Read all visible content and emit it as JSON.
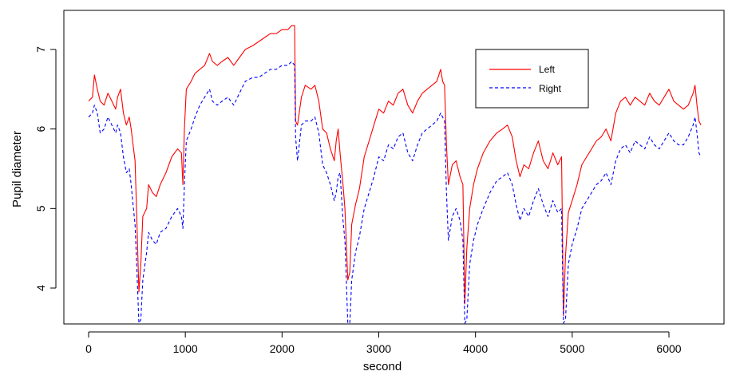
{
  "chart_data": {
    "type": "line",
    "title": "",
    "xlabel": "second",
    "ylabel": "Pupil diameter",
    "xlim": [
      0,
      6350
    ],
    "ylim": [
      3.55,
      7.45
    ],
    "x_ticks": [
      {
        "value": 0,
        "label": "0"
      },
      {
        "value": 1000,
        "label": "1000"
      },
      {
        "value": 2000,
        "label": "2000"
      },
      {
        "value": 3000,
        "label": "3000"
      },
      {
        "value": 4000,
        "label": "4000"
      },
      {
        "value": 5000,
        "label": "5000"
      },
      {
        "value": 6000,
        "label": "6000"
      }
    ],
    "y_ticks": [
      {
        "value": 4,
        "label": "4"
      },
      {
        "value": 5,
        "label": "5"
      },
      {
        "value": 6,
        "label": "6"
      },
      {
        "value": 7,
        "label": "7"
      }
    ],
    "grid": false,
    "legend": {
      "placement": "top-right"
    },
    "series": [
      {
        "name": "Left",
        "color": "#ff0000",
        "dash": "solid",
        "points": [
          [
            0,
            6.35
          ],
          [
            40,
            6.4
          ],
          [
            60,
            6.68
          ],
          [
            90,
            6.5
          ],
          [
            120,
            6.35
          ],
          [
            160,
            6.3
          ],
          [
            200,
            6.45
          ],
          [
            240,
            6.35
          ],
          [
            280,
            6.25
          ],
          [
            300,
            6.4
          ],
          [
            330,
            6.5
          ],
          [
            360,
            6.2
          ],
          [
            390,
            6.05
          ],
          [
            420,
            6.15
          ],
          [
            440,
            6.0
          ],
          [
            460,
            5.8
          ],
          [
            480,
            5.6
          ],
          [
            500,
            4.8
          ],
          [
            520,
            3.95
          ],
          [
            540,
            4.3
          ],
          [
            560,
            4.9
          ],
          [
            600,
            5.0
          ],
          [
            620,
            5.3
          ],
          [
            660,
            5.2
          ],
          [
            700,
            5.15
          ],
          [
            740,
            5.3
          ],
          [
            800,
            5.45
          ],
          [
            860,
            5.65
          ],
          [
            920,
            5.75
          ],
          [
            960,
            5.7
          ],
          [
            975,
            5.3
          ],
          [
            990,
            6.0
          ],
          [
            1010,
            6.5
          ],
          [
            1060,
            6.6
          ],
          [
            1100,
            6.7
          ],
          [
            1150,
            6.75
          ],
          [
            1200,
            6.8
          ],
          [
            1250,
            6.95
          ],
          [
            1280,
            6.85
          ],
          [
            1330,
            6.8
          ],
          [
            1380,
            6.85
          ],
          [
            1440,
            6.9
          ],
          [
            1500,
            6.8
          ],
          [
            1560,
            6.9
          ],
          [
            1620,
            7.0
          ],
          [
            1700,
            7.05
          ],
          [
            1760,
            7.1
          ],
          [
            1820,
            7.15
          ],
          [
            1880,
            7.2
          ],
          [
            1940,
            7.2
          ],
          [
            2000,
            7.25
          ],
          [
            2060,
            7.25
          ],
          [
            2100,
            7.3
          ],
          [
            2130,
            7.3
          ],
          [
            2140,
            6.1
          ],
          [
            2160,
            6.05
          ],
          [
            2200,
            6.4
          ],
          [
            2240,
            6.55
          ],
          [
            2300,
            6.5
          ],
          [
            2340,
            6.55
          ],
          [
            2380,
            6.35
          ],
          [
            2420,
            6.0
          ],
          [
            2460,
            5.95
          ],
          [
            2500,
            5.75
          ],
          [
            2540,
            5.6
          ],
          [
            2560,
            5.85
          ],
          [
            2580,
            6.0
          ],
          [
            2600,
            5.7
          ],
          [
            2630,
            5.3
          ],
          [
            2650,
            5.0
          ],
          [
            2680,
            4.1
          ],
          [
            2700,
            4.2
          ],
          [
            2720,
            4.8
          ],
          [
            2760,
            5.05
          ],
          [
            2800,
            5.25
          ],
          [
            2850,
            5.65
          ],
          [
            2900,
            5.85
          ],
          [
            2950,
            6.05
          ],
          [
            3000,
            6.25
          ],
          [
            3050,
            6.2
          ],
          [
            3100,
            6.35
          ],
          [
            3150,
            6.3
          ],
          [
            3200,
            6.45
          ],
          [
            3250,
            6.5
          ],
          [
            3300,
            6.3
          ],
          [
            3350,
            6.2
          ],
          [
            3400,
            6.35
          ],
          [
            3450,
            6.45
          ],
          [
            3500,
            6.5
          ],
          [
            3550,
            6.55
          ],
          [
            3600,
            6.6
          ],
          [
            3640,
            6.75
          ],
          [
            3660,
            6.6
          ],
          [
            3680,
            6.55
          ],
          [
            3700,
            5.8
          ],
          [
            3720,
            5.3
          ],
          [
            3760,
            5.55
          ],
          [
            3800,
            5.6
          ],
          [
            3840,
            5.4
          ],
          [
            3870,
            5.3
          ],
          [
            3890,
            3.8
          ],
          [
            3910,
            4.5
          ],
          [
            3940,
            5.0
          ],
          [
            3980,
            5.3
          ],
          [
            4020,
            5.5
          ],
          [
            4080,
            5.7
          ],
          [
            4150,
            5.85
          ],
          [
            4220,
            5.95
          ],
          [
            4280,
            6.0
          ],
          [
            4330,
            6.05
          ],
          [
            4380,
            5.9
          ],
          [
            4420,
            5.6
          ],
          [
            4460,
            5.4
          ],
          [
            4500,
            5.55
          ],
          [
            4550,
            5.5
          ],
          [
            4600,
            5.7
          ],
          [
            4650,
            5.85
          ],
          [
            4700,
            5.6
          ],
          [
            4750,
            5.5
          ],
          [
            4800,
            5.7
          ],
          [
            4850,
            5.55
          ],
          [
            4890,
            5.65
          ],
          [
            4910,
            3.65
          ],
          [
            4930,
            4.4
          ],
          [
            4960,
            4.95
          ],
          [
            5000,
            5.1
          ],
          [
            5050,
            5.3
          ],
          [
            5100,
            5.55
          ],
          [
            5150,
            5.65
          ],
          [
            5200,
            5.75
          ],
          [
            5250,
            5.85
          ],
          [
            5300,
            5.9
          ],
          [
            5350,
            6.0
          ],
          [
            5400,
            5.85
          ],
          [
            5450,
            6.2
          ],
          [
            5500,
            6.35
          ],
          [
            5550,
            6.4
          ],
          [
            5600,
            6.3
          ],
          [
            5650,
            6.4
          ],
          [
            5700,
            6.35
          ],
          [
            5750,
            6.3
          ],
          [
            5800,
            6.45
          ],
          [
            5850,
            6.35
          ],
          [
            5900,
            6.3
          ],
          [
            5950,
            6.4
          ],
          [
            6000,
            6.5
          ],
          [
            6050,
            6.35
          ],
          [
            6100,
            6.3
          ],
          [
            6150,
            6.25
          ],
          [
            6200,
            6.3
          ],
          [
            6250,
            6.45
          ],
          [
            6270,
            6.55
          ],
          [
            6290,
            6.3
          ],
          [
            6310,
            6.1
          ],
          [
            6330,
            6.05
          ]
        ]
      },
      {
        "name": "Right",
        "color": "#0000ff",
        "dash": "dashed",
        "points": [
          [
            0,
            6.15
          ],
          [
            40,
            6.2
          ],
          [
            60,
            6.3
          ],
          [
            90,
            6.2
          ],
          [
            120,
            5.95
          ],
          [
            160,
            6.0
          ],
          [
            200,
            6.15
          ],
          [
            240,
            6.05
          ],
          [
            280,
            5.95
          ],
          [
            300,
            6.05
          ],
          [
            330,
            5.95
          ],
          [
            360,
            5.65
          ],
          [
            390,
            5.45
          ],
          [
            420,
            5.5
          ],
          [
            440,
            5.3
          ],
          [
            460,
            5.05
          ],
          [
            480,
            4.8
          ],
          [
            500,
            4.2
          ],
          [
            520,
            3.55
          ],
          [
            540,
            3.6
          ],
          [
            560,
            4.1
          ],
          [
            600,
            4.45
          ],
          [
            620,
            4.7
          ],
          [
            660,
            4.6
          ],
          [
            700,
            4.55
          ],
          [
            740,
            4.7
          ],
          [
            800,
            4.75
          ],
          [
            860,
            4.9
          ],
          [
            920,
            5.0
          ],
          [
            960,
            4.9
          ],
          [
            975,
            4.75
          ],
          [
            990,
            5.3
          ],
          [
            1010,
            5.85
          ],
          [
            1060,
            6.0
          ],
          [
            1100,
            6.15
          ],
          [
            1150,
            6.3
          ],
          [
            1200,
            6.4
          ],
          [
            1250,
            6.5
          ],
          [
            1280,
            6.35
          ],
          [
            1330,
            6.3
          ],
          [
            1380,
            6.35
          ],
          [
            1440,
            6.4
          ],
          [
            1500,
            6.3
          ],
          [
            1560,
            6.45
          ],
          [
            1620,
            6.6
          ],
          [
            1700,
            6.65
          ],
          [
            1760,
            6.65
          ],
          [
            1820,
            6.7
          ],
          [
            1880,
            6.75
          ],
          [
            1940,
            6.75
          ],
          [
            2000,
            6.8
          ],
          [
            2060,
            6.8
          ],
          [
            2100,
            6.85
          ],
          [
            2130,
            6.8
          ],
          [
            2140,
            5.9
          ],
          [
            2160,
            5.6
          ],
          [
            2200,
            6.05
          ],
          [
            2240,
            6.1
          ],
          [
            2300,
            6.1
          ],
          [
            2340,
            6.15
          ],
          [
            2380,
            5.95
          ],
          [
            2420,
            5.55
          ],
          [
            2460,
            5.45
          ],
          [
            2500,
            5.3
          ],
          [
            2540,
            5.1
          ],
          [
            2560,
            5.2
          ],
          [
            2580,
            5.4
          ],
          [
            2600,
            5.45
          ],
          [
            2630,
            4.85
          ],
          [
            2650,
            4.6
          ],
          [
            2680,
            3.55
          ],
          [
            2700,
            3.55
          ],
          [
            2720,
            4.1
          ],
          [
            2760,
            4.45
          ],
          [
            2800,
            4.65
          ],
          [
            2850,
            5.0
          ],
          [
            2900,
            5.2
          ],
          [
            2950,
            5.4
          ],
          [
            3000,
            5.65
          ],
          [
            3050,
            5.6
          ],
          [
            3100,
            5.8
          ],
          [
            3150,
            5.75
          ],
          [
            3200,
            5.9
          ],
          [
            3250,
            5.95
          ],
          [
            3300,
            5.7
          ],
          [
            3350,
            5.6
          ],
          [
            3400,
            5.8
          ],
          [
            3450,
            5.95
          ],
          [
            3500,
            6.0
          ],
          [
            3550,
            6.05
          ],
          [
            3600,
            6.1
          ],
          [
            3640,
            6.2
          ],
          [
            3660,
            6.15
          ],
          [
            3680,
            6.1
          ],
          [
            3700,
            5.2
          ],
          [
            3720,
            4.6
          ],
          [
            3760,
            4.9
          ],
          [
            3800,
            5.0
          ],
          [
            3840,
            4.85
          ],
          [
            3870,
            4.6
          ],
          [
            3890,
            3.55
          ],
          [
            3910,
            3.6
          ],
          [
            3940,
            4.3
          ],
          [
            3980,
            4.6
          ],
          [
            4020,
            4.8
          ],
          [
            4080,
            5.0
          ],
          [
            4150,
            5.2
          ],
          [
            4220,
            5.35
          ],
          [
            4280,
            5.4
          ],
          [
            4330,
            5.45
          ],
          [
            4380,
            5.3
          ],
          [
            4420,
            5.05
          ],
          [
            4460,
            4.85
          ],
          [
            4500,
            5.0
          ],
          [
            4550,
            4.9
          ],
          [
            4600,
            5.1
          ],
          [
            4650,
            5.25
          ],
          [
            4700,
            5.05
          ],
          [
            4750,
            4.9
          ],
          [
            4800,
            5.1
          ],
          [
            4850,
            4.95
          ],
          [
            4890,
            5.0
          ],
          [
            4910,
            3.55
          ],
          [
            4930,
            3.6
          ],
          [
            4960,
            4.3
          ],
          [
            5000,
            4.55
          ],
          [
            5050,
            4.75
          ],
          [
            5100,
            5.0
          ],
          [
            5150,
            5.1
          ],
          [
            5200,
            5.2
          ],
          [
            5250,
            5.3
          ],
          [
            5300,
            5.35
          ],
          [
            5350,
            5.45
          ],
          [
            5400,
            5.3
          ],
          [
            5450,
            5.6
          ],
          [
            5500,
            5.75
          ],
          [
            5550,
            5.8
          ],
          [
            5600,
            5.7
          ],
          [
            5650,
            5.85
          ],
          [
            5700,
            5.8
          ],
          [
            5750,
            5.75
          ],
          [
            5800,
            5.9
          ],
          [
            5850,
            5.8
          ],
          [
            5900,
            5.75
          ],
          [
            5950,
            5.85
          ],
          [
            6000,
            5.95
          ],
          [
            6050,
            5.85
          ],
          [
            6100,
            5.8
          ],
          [
            6150,
            5.8
          ],
          [
            6200,
            5.9
          ],
          [
            6250,
            6.05
          ],
          [
            6270,
            6.15
          ],
          [
            6290,
            5.95
          ],
          [
            6310,
            5.7
          ],
          [
            6330,
            5.65
          ]
        ]
      }
    ]
  }
}
